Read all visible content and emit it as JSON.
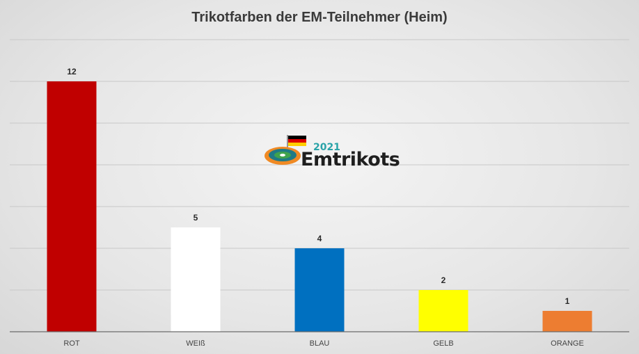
{
  "chart_data": {
    "type": "bar",
    "title": "Trikotfarben der EM-Teilnehmer (Heim)",
    "categories": [
      "ROT",
      "WEIß",
      "BLAU",
      "GELB",
      "ORANGE"
    ],
    "values": [
      12,
      5,
      4,
      2,
      1
    ],
    "colors": [
      "#c00000",
      "#ffffff",
      "#0070c0",
      "#ffff00",
      "#ed7d31"
    ],
    "ylim": [
      0,
      14
    ],
    "grid": true,
    "legend": "none"
  },
  "logo": {
    "year": "2021",
    "name": "Emtrikots"
  }
}
